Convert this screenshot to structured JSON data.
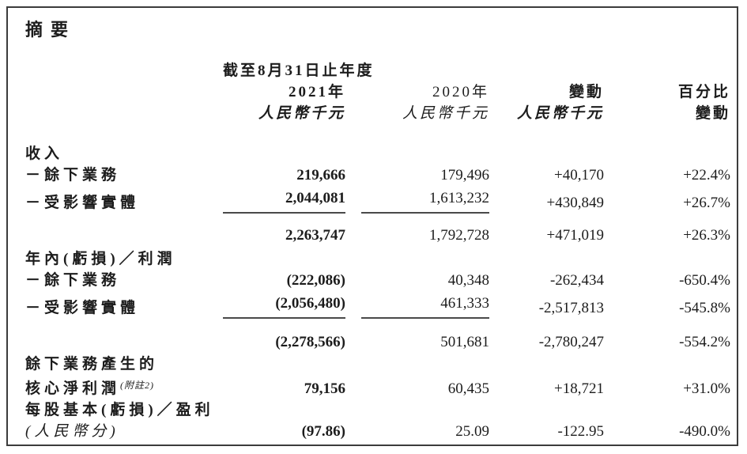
{
  "page": {
    "title": "摘要"
  },
  "table": {
    "period_header": "截至8月31日止年度",
    "columns": {
      "y2021": {
        "year": "2021年",
        "unit": "人民幣千元"
      },
      "y2020": {
        "year": "2020年",
        "unit": "人民幣千元"
      },
      "change": {
        "label": "變動",
        "unit": "人民幣千元"
      },
      "pct": {
        "label_line1": "百分比",
        "label_line2": "變動"
      }
    },
    "rows": [
      {
        "label": "收入"
      },
      {
        "label": "－餘下業務",
        "v2021": "219,666",
        "v2020": "179,496",
        "change": "+40,170",
        "pct": "+22.4%"
      },
      {
        "label": "－受影響實體",
        "v2021": "2,044,081",
        "v2020": "1,613,232",
        "change": "+430,849",
        "pct": "+26.7%"
      },
      {
        "label": "",
        "v2021": "2,263,747",
        "v2020": "1,792,728",
        "change": "+471,019",
        "pct": "+26.3%"
      },
      {
        "label": "年內(虧損)／利潤"
      },
      {
        "label": "－餘下業務",
        "v2021": "(222,086)",
        "v2020": "40,348",
        "change": "-262,434",
        "pct": "-650.4%"
      },
      {
        "label": "－受影響實體",
        "v2021": "(2,056,480)",
        "v2020": "461,333",
        "change": "-2,517,813",
        "pct": "-545.8%"
      },
      {
        "label": "",
        "v2021": "(2,278,566)",
        "v2020": "501,681",
        "change": "-2,780,247",
        "pct": "-554.2%"
      },
      {
        "label": "餘下業務產生的"
      },
      {
        "label": "核心淨利潤",
        "note": "(附註2)",
        "v2021": "79,156",
        "v2020": "60,435",
        "change": "+18,721",
        "pct": "+31.0%"
      },
      {
        "label": "每股基本(虧損)／盈利"
      },
      {
        "label": "(人民幣分)",
        "v2021": "(97.86)",
        "v2020": "25.09",
        "change": "-122.95",
        "pct": "-490.0%"
      }
    ]
  }
}
